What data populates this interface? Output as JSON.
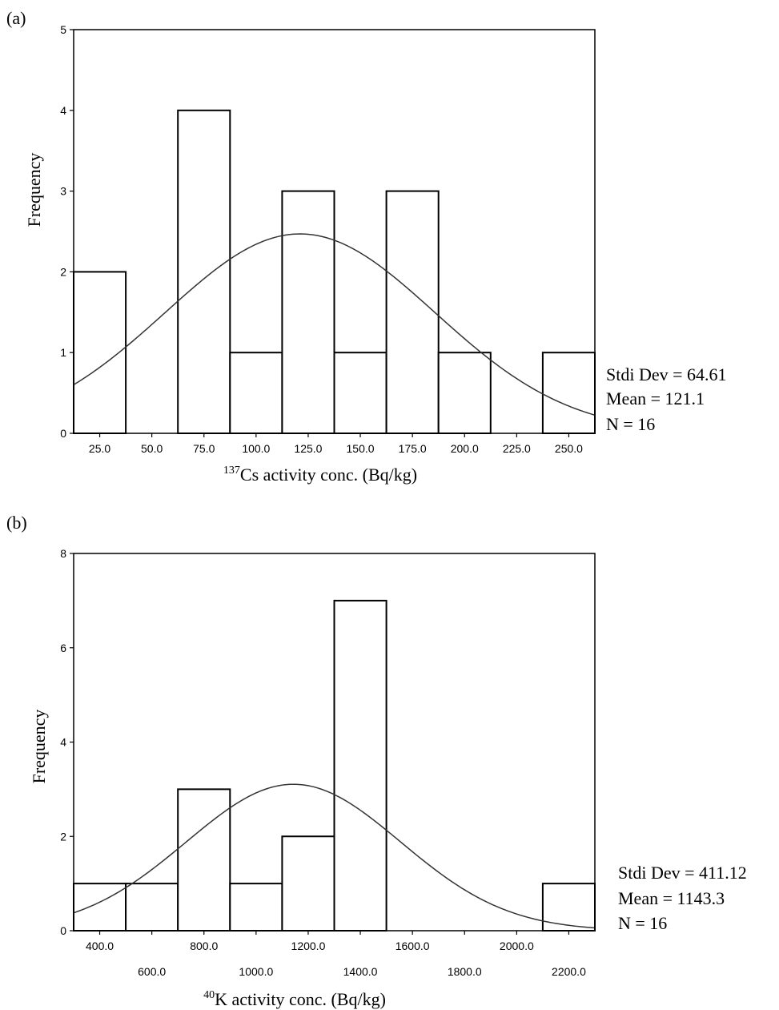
{
  "chart_data": [
    {
      "type": "bar",
      "panel_label": "(a)",
      "xlabel_sup": "137",
      "xlabel_main": "Cs activity conc. (Bq/kg)",
      "ylabel": "Frequency",
      "bin_edges": [
        12.5,
        37.5,
        62.5,
        87.5,
        112.5,
        137.5,
        162.5,
        187.5,
        212.5,
        237.5,
        262.5
      ],
      "values": [
        2,
        0,
        4,
        1,
        3,
        1,
        3,
        1,
        0,
        1
      ],
      "xlim": [
        12.5,
        262.5
      ],
      "ylim": [
        0,
        5
      ],
      "x_ticks": [
        "25.0",
        "50.0",
        "75.0",
        "100.0",
        "125.0",
        "150.0",
        "175.0",
        "200.0",
        "225.0",
        "250.0"
      ],
      "x_tick_values": [
        25,
        50,
        75,
        100,
        125,
        150,
        175,
        200,
        225,
        250
      ],
      "y_ticks": [
        "0",
        "1",
        "2",
        "3",
        "4",
        "5"
      ],
      "y_tick_values": [
        0,
        1,
        2,
        3,
        4,
        5
      ],
      "normal_curve": {
        "mean": 121.1,
        "std": 64.61,
        "n": 16,
        "bin_width": 25
      },
      "stats": [
        "Stdi Dev = 64.61",
        "Mean = 121.1",
        "N = 16"
      ]
    },
    {
      "type": "bar",
      "panel_label": "(b)",
      "xlabel_sup": "40",
      "xlabel_main": "K activity conc. (Bq/kg)",
      "ylabel": "Frequency",
      "bin_edges": [
        300,
        500,
        700,
        900,
        1100,
        1300,
        1500,
        1700,
        1900,
        2100,
        2300
      ],
      "values": [
        1,
        1,
        3,
        1,
        2,
        7,
        0,
        0,
        0,
        1
      ],
      "xlim": [
        300,
        2300
      ],
      "ylim": [
        0,
        8
      ],
      "x_ticks": [
        "400.0",
        "600.0",
        "800.0",
        "1000.0",
        "1200.0",
        "1400.0",
        "1600.0",
        "1800.0",
        "2000.0",
        "2200.0"
      ],
      "x_tick_values": [
        400,
        600,
        800,
        1000,
        1200,
        1400,
        1600,
        1800,
        2000,
        2200
      ],
      "y_ticks": [
        "0",
        "2",
        "4",
        "6",
        "8"
      ],
      "y_tick_values": [
        0,
        2,
        4,
        6,
        8
      ],
      "normal_curve": {
        "mean": 1143.3,
        "std": 411.12,
        "n": 16,
        "bin_width": 200
      },
      "stats": [
        "Stdi Dev = 411.12",
        "Mean = 1143.3",
        "N = 16"
      ]
    }
  ]
}
